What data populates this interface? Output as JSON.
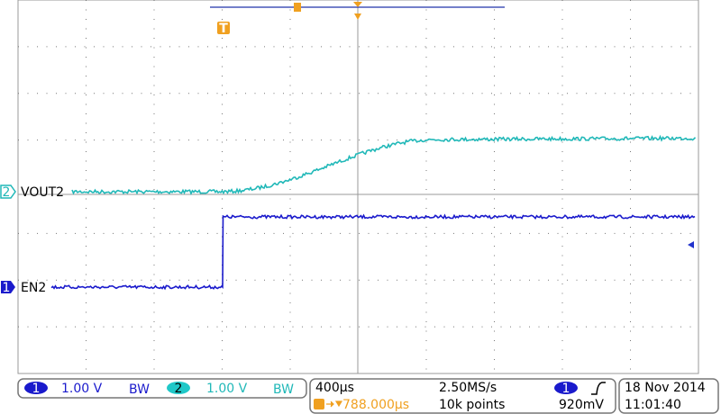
{
  "channels": [
    {
      "number": "1",
      "label": "EN2",
      "scale": "1.00 V",
      "bw": "BW"
    },
    {
      "number": "2",
      "label": "VOUT2",
      "scale": "1.00 V",
      "bw": "BW"
    }
  ],
  "trigger_marker": "T",
  "timebase": {
    "scale": "400µs",
    "sample_rate": "2.50MS/s",
    "delay": "788.000µs",
    "record_length": "10k points"
  },
  "trigger": {
    "source": "1",
    "level": "920mV"
  },
  "date": "18 Nov 2014",
  "time": "11:01:40"
}
